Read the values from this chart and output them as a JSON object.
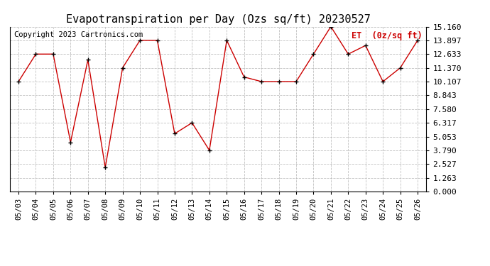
{
  "title": "Evapotranspiration per Day (Ozs sq/ft) 20230527",
  "copyright": "Copyright 2023 Cartronics.com",
  "legend_label": "ET  (0z/sq ft)",
  "x_labels": [
    "05/03",
    "05/04",
    "05/05",
    "05/06",
    "05/07",
    "05/08",
    "05/09",
    "05/10",
    "05/11",
    "05/12",
    "05/13",
    "05/14",
    "05/15",
    "05/16",
    "05/17",
    "05/18",
    "05/19",
    "05/20",
    "05/21",
    "05/22",
    "05/23",
    "05/24",
    "05/25",
    "05/26"
  ],
  "y_values": [
    10.107,
    12.633,
    12.633,
    4.527,
    12.107,
    2.213,
    11.37,
    13.897,
    13.897,
    5.317,
    6.317,
    3.79,
    13.897,
    10.527,
    10.107,
    10.107,
    10.107,
    12.633,
    15.16,
    12.633,
    13.423,
    10.107,
    11.37,
    13.897
  ],
  "y_ticks": [
    0.0,
    1.263,
    2.527,
    3.79,
    5.053,
    6.317,
    7.58,
    8.843,
    10.107,
    11.37,
    12.633,
    13.897,
    15.16
  ],
  "line_color": "#cc0000",
  "marker_color": "#000000",
  "legend_color": "#cc0000",
  "background_color": "#ffffff",
  "grid_color": "#b0b0b0",
  "title_fontsize": 11,
  "copyright_fontsize": 7.5,
  "ylim": [
    0.0,
    15.16
  ],
  "tick_fontsize": 7.5,
  "ytick_fontsize": 8
}
